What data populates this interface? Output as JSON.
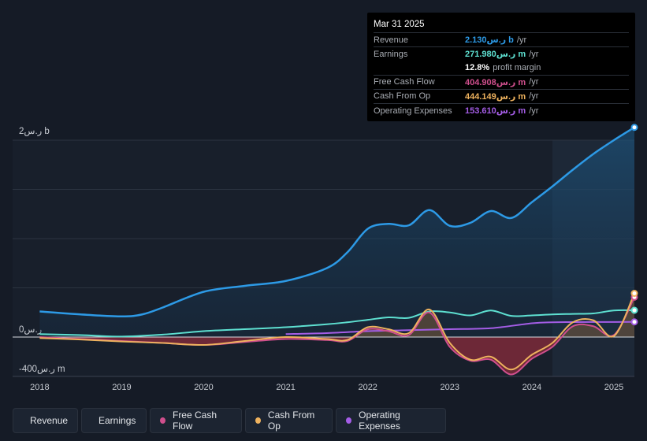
{
  "tooltip": {
    "date": "Mar 31 2025",
    "rows": [
      {
        "label": "Revenue",
        "value": "2.130ر.س b",
        "suffix": "/yr",
        "color": "#2d9ae6"
      },
      {
        "label": "Earnings",
        "value": "271.980ر.س m",
        "suffix": "/yr",
        "color": "#5ee0d1"
      },
      {
        "label": "",
        "value": "12.8%",
        "suffix": "profit margin",
        "color": "#ffffff"
      },
      {
        "label": "Free Cash Flow",
        "value": "404.908ر.س m",
        "suffix": "/yr",
        "color": "#d04f8d"
      },
      {
        "label": "Cash From Op",
        "value": "444.149ر.س m",
        "suffix": "/yr",
        "color": "#eeb25e"
      },
      {
        "label": "Operating Expenses",
        "value": "153.610ر.س m",
        "suffix": "/yr",
        "color": "#a45de6"
      }
    ]
  },
  "legend": [
    {
      "name": "Revenue",
      "color": "#2d9ae6"
    },
    {
      "name": "Earnings",
      "color": "#5ee0d1"
    },
    {
      "name": "Free Cash Flow",
      "color": "#d04f8d"
    },
    {
      "name": "Cash From Op",
      "color": "#eeb25e"
    },
    {
      "name": "Operating Expenses",
      "color": "#a45de6"
    }
  ],
  "chart_data": {
    "type": "area",
    "y_unit": "SAR millions",
    "ylim": [
      -400,
      2000
    ],
    "y_tick_labels": [
      "2ر.س b",
      "0ر.س",
      "-400ر.س m"
    ],
    "x_tick_labels": [
      "2018",
      "2019",
      "2020",
      "2021",
      "2022",
      "2023",
      "2024",
      "2025"
    ],
    "x_ticks": [
      2018,
      2019,
      2020,
      2021,
      2022,
      2023,
      2024,
      2025
    ],
    "xlim": [
      2017.67,
      2025.25
    ],
    "forecast_start": 2024.25,
    "series": [
      {
        "name": "Revenue",
        "color": "#2d9ae6",
        "points": [
          [
            2018,
            260
          ],
          [
            2018.5,
            230
          ],
          [
            2019,
            210
          ],
          [
            2019.25,
            230
          ],
          [
            2019.5,
            300
          ],
          [
            2020,
            460
          ],
          [
            2020.5,
            520
          ],
          [
            2021,
            570
          ],
          [
            2021.5,
            700
          ],
          [
            2021.75,
            860
          ],
          [
            2022,
            1100
          ],
          [
            2022.25,
            1150
          ],
          [
            2022.5,
            1135
          ],
          [
            2022.75,
            1290
          ],
          [
            2023,
            1130
          ],
          [
            2023.25,
            1160
          ],
          [
            2023.5,
            1280
          ],
          [
            2023.75,
            1210
          ],
          [
            2024,
            1370
          ],
          [
            2024.25,
            1530
          ],
          [
            2024.5,
            1700
          ],
          [
            2024.75,
            1860
          ],
          [
            2025,
            2000
          ],
          [
            2025.25,
            2130
          ]
        ]
      },
      {
        "name": "Earnings",
        "color": "#5ee0d1",
        "points": [
          [
            2018,
            30
          ],
          [
            2018.5,
            20
          ],
          [
            2019,
            5
          ],
          [
            2019.5,
            25
          ],
          [
            2020,
            60
          ],
          [
            2020.5,
            80
          ],
          [
            2021,
            100
          ],
          [
            2021.5,
            130
          ],
          [
            2021.75,
            150
          ],
          [
            2022,
            175
          ],
          [
            2022.25,
            200
          ],
          [
            2022.5,
            195
          ],
          [
            2022.75,
            260
          ],
          [
            2023,
            250
          ],
          [
            2023.25,
            220
          ],
          [
            2023.5,
            270
          ],
          [
            2023.75,
            215
          ],
          [
            2024,
            220
          ],
          [
            2024.25,
            230
          ],
          [
            2024.5,
            235
          ],
          [
            2024.75,
            240
          ],
          [
            2025,
            270
          ],
          [
            2025.25,
            272
          ]
        ]
      },
      {
        "name": "Free Cash Flow",
        "color": "#d04f8d",
        "points": [
          [
            2018,
            0
          ],
          [
            2018.5,
            -20
          ],
          [
            2019,
            -40
          ],
          [
            2019.5,
            -60
          ],
          [
            2020,
            -80
          ],
          [
            2020.5,
            -50
          ],
          [
            2021,
            -20
          ],
          [
            2021.5,
            -30
          ],
          [
            2021.75,
            -40
          ],
          [
            2022,
            80
          ],
          [
            2022.25,
            60
          ],
          [
            2022.5,
            20
          ],
          [
            2022.75,
            250
          ],
          [
            2023,
            -100
          ],
          [
            2023.25,
            -240
          ],
          [
            2023.5,
            -230
          ],
          [
            2023.75,
            -380
          ],
          [
            2024,
            -220
          ],
          [
            2024.25,
            -100
          ],
          [
            2024.5,
            110
          ],
          [
            2024.75,
            110
          ],
          [
            2025,
            20
          ],
          [
            2025.25,
            405
          ]
        ]
      },
      {
        "name": "Cash From Op",
        "color": "#eeb25e",
        "points": [
          [
            2018,
            -10
          ],
          [
            2018.5,
            -25
          ],
          [
            2019,
            -45
          ],
          [
            2019.5,
            -60
          ],
          [
            2020,
            -80
          ],
          [
            2020.5,
            -40
          ],
          [
            2021,
            0
          ],
          [
            2021.5,
            -20
          ],
          [
            2021.75,
            -30
          ],
          [
            2022,
            100
          ],
          [
            2022.25,
            80
          ],
          [
            2022.5,
            40
          ],
          [
            2022.75,
            280
          ],
          [
            2023,
            -60
          ],
          [
            2023.25,
            -230
          ],
          [
            2023.5,
            -200
          ],
          [
            2023.75,
            -330
          ],
          [
            2024,
            -180
          ],
          [
            2024.25,
            -60
          ],
          [
            2024.5,
            150
          ],
          [
            2024.75,
            170
          ],
          [
            2025,
            10
          ],
          [
            2025.25,
            444
          ]
        ]
      },
      {
        "name": "Operating Expenses",
        "color": "#a45de6",
        "points": [
          [
            2021,
            30
          ],
          [
            2021.5,
            40
          ],
          [
            2022,
            60
          ],
          [
            2022.5,
            70
          ],
          [
            2023,
            80
          ],
          [
            2023.5,
            90
          ],
          [
            2024,
            140
          ],
          [
            2024.25,
            150
          ],
          [
            2024.5,
            152
          ],
          [
            2025,
            153
          ],
          [
            2025.25,
            154
          ]
        ]
      }
    ]
  }
}
